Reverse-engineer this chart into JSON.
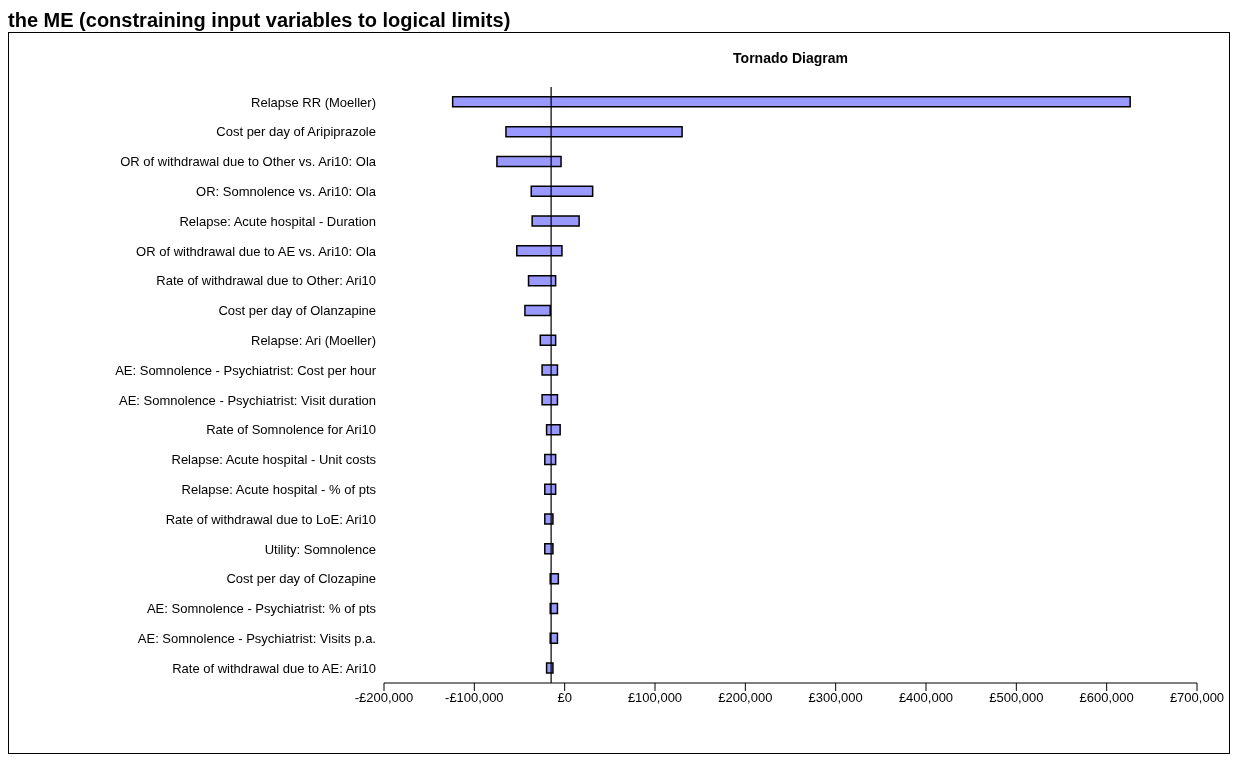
{
  "chart_data": {
    "type": "bar",
    "orientation": "horizontal",
    "title": "Tornado Diagram",
    "annotations": [
      "the ME (constraining input variables to logical limits)"
    ],
    "categories": [
      "Relapse RR (Moeller)",
      "Cost per day of Aripiprazole",
      "OR of withdrawal due to Other vs. Ari10: Ola",
      "OR: Somnolence vs. Ari10: Ola",
      "Relapse: Acute hospital - Duration",
      "OR of withdrawal due to AE vs. Ari10: Ola",
      "Rate of withdrawal due to Other: Ari10",
      "Cost per day of Olanzapine",
      "Relapse: Ari (Moeller)",
      "AE: Somnolence - Psychiatrist: Cost per hour",
      "AE: Somnolence - Psychiatrist: Visit duration",
      "Rate of Somnolence for Ari10",
      "Relapse: Acute hospital - Unit costs",
      "Relapse: Acute hospital - % of pts",
      "Rate of withdrawal due to LoE: Ari10",
      "Utility: Somnolence",
      "Cost per day of Clozapine",
      "AE: Somnolence - Psychiatrist: % of pts",
      "AE: Somnolence - Psychiatrist: Visits p.a.",
      "Rate of withdrawal due to AE: Ari10"
    ],
    "base": [
      -124000,
      -65000,
      -75000,
      -37000,
      -36000,
      -53000,
      -40000,
      -44000,
      -27000,
      -25000,
      -25000,
      -20000,
      -22000,
      -22000,
      -22000,
      -22000,
      -16000,
      -16000,
      -16000,
      -20000
    ],
    "values": [
      750000,
      195000,
      71000,
      68000,
      52000,
      50000,
      30000,
      28000,
      17000,
      17000,
      17000,
      15000,
      12000,
      12000,
      9000,
      9000,
      9000,
      8000,
      8000,
      7000
    ],
    "color": "#9999ff",
    "xlim": [
      -200000,
      700000
    ],
    "xticks": [
      {
        "value": -200000,
        "label": "-£200,000"
      },
      {
        "value": -100000,
        "label": "-£100,000"
      },
      {
        "value": 0,
        "label": "£0"
      },
      {
        "value": 100000,
        "label": "£100,000"
      },
      {
        "value": 200000,
        "label": "£200,000"
      },
      {
        "value": 300000,
        "label": "£300,000"
      },
      {
        "value": 400000,
        "label": "£400,000"
      },
      {
        "value": 500000,
        "label": "£500,000"
      },
      {
        "value": 600000,
        "label": "£600,000"
      },
      {
        "value": 700000,
        "label": "£700,000"
      }
    ],
    "ref_lines": [
      {
        "axis": "x",
        "value": -15000,
        "color": "#000000"
      }
    ],
    "grid": false,
    "legend": false
  }
}
